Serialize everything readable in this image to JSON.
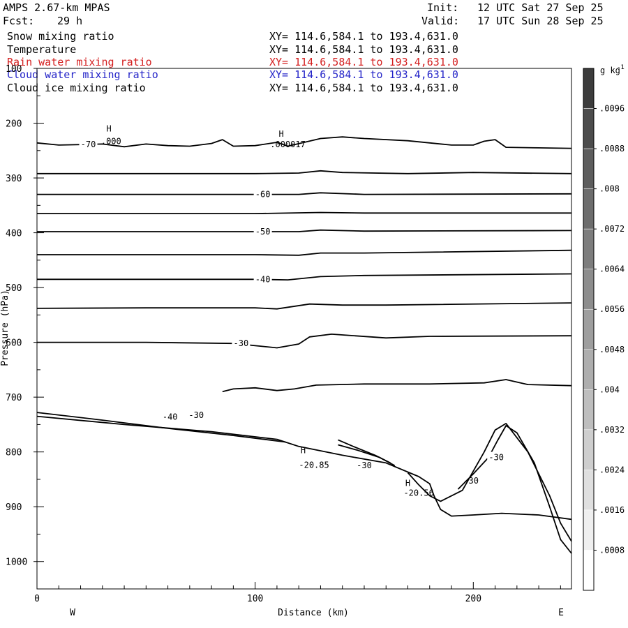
{
  "header": {
    "model": "AMPS 2.67-km MPAS",
    "init_label": "Init:",
    "init_value": "12 UTC Sat 27 Sep 25",
    "fcst_label": "Fcst:",
    "fcst_value": "29 h",
    "valid_label": "Valid:",
    "valid_value": "17 UTC Sun 28 Sep 25"
  },
  "fields": [
    {
      "name": "Snow mixing ratio",
      "xy": "XY= 114.6,584.1 to 193.4,631.0",
      "color": "#000000"
    },
    {
      "name": "Temperature",
      "xy": "XY= 114.6,584.1 to 193.4,631.0",
      "color": "#000000"
    },
    {
      "name": "Rain water mixing ratio",
      "xy": "XY= 114.6,584.1 to 193.4,631.0",
      "color": "#d42020"
    },
    {
      "name": "Cloud water mixing ratio",
      "xy": "XY= 114.6,584.1 to 193.4,631.0",
      "color": "#2424c8"
    },
    {
      "name": "Cloud ice mixing ratio",
      "xy": "XY= 114.6,584.1 to 193.4,631.0",
      "color": "#000000"
    }
  ],
  "chart_data": {
    "type": "line",
    "title": "",
    "xlabel": "Distance (km)",
    "ylabel": "Pressure (hPa)",
    "xlim": [
      0,
      245
    ],
    "ylim": [
      1050,
      100
    ],
    "x_ticks": [
      0,
      100,
      200
    ],
    "y_ticks": [
      100,
      200,
      300,
      400,
      500,
      600,
      700,
      800,
      900,
      1000
    ],
    "x_end_labels": {
      "left": "W",
      "right": "E"
    },
    "colorbar": {
      "unit": "g kg",
      "unit_exp": "-1",
      "levels": [
        ".0096",
        ".0088",
        ".008",
        ".0072",
        ".0064",
        ".0056",
        ".0048",
        ".004",
        ".0032",
        ".0024",
        ".0016",
        ".0008"
      ]
    },
    "series": [
      {
        "label": "-70",
        "points": [
          [
            0,
            236
          ],
          [
            10,
            240
          ],
          [
            20,
            239
          ],
          [
            30,
            238
          ],
          [
            40,
            243
          ],
          [
            50,
            238
          ],
          [
            60,
            241
          ],
          [
            70,
            242
          ],
          [
            80,
            237
          ],
          [
            85,
            230
          ],
          [
            90,
            242
          ],
          [
            100,
            241
          ],
          [
            110,
            235
          ],
          [
            115,
            242
          ],
          [
            130,
            228
          ],
          [
            140,
            225
          ],
          [
            150,
            228
          ],
          [
            170,
            232
          ],
          [
            190,
            240
          ],
          [
            200,
            240
          ],
          [
            205,
            233
          ],
          [
            210,
            230
          ],
          [
            215,
            244
          ],
          [
            230,
            245
          ],
          [
            245,
            246
          ]
        ]
      },
      {
        "label": "",
        "points": [
          [
            0,
            292
          ],
          [
            50,
            292
          ],
          [
            100,
            292
          ],
          [
            120,
            291
          ],
          [
            130,
            287
          ],
          [
            140,
            290
          ],
          [
            170,
            292
          ],
          [
            200,
            290
          ],
          [
            245,
            292
          ]
        ]
      },
      {
        "label": "-60",
        "points": [
          [
            0,
            330
          ],
          [
            50,
            330
          ],
          [
            100,
            330
          ],
          [
            120,
            330
          ],
          [
            130,
            327
          ],
          [
            150,
            330
          ],
          [
            245,
            329
          ]
        ]
      },
      {
        "label": "",
        "points": [
          [
            0,
            365
          ],
          [
            50,
            365
          ],
          [
            100,
            365
          ],
          [
            130,
            363
          ],
          [
            150,
            364
          ],
          [
            245,
            364
          ]
        ]
      },
      {
        "label": "-50",
        "points": [
          [
            0,
            398
          ],
          [
            50,
            398
          ],
          [
            100,
            398
          ],
          [
            120,
            398
          ],
          [
            130,
            395
          ],
          [
            150,
            397
          ],
          [
            245,
            396
          ]
        ]
      },
      {
        "label": "",
        "points": [
          [
            0,
            440
          ],
          [
            50,
            440
          ],
          [
            100,
            440
          ],
          [
            120,
            441
          ],
          [
            130,
            437
          ],
          [
            150,
            437
          ],
          [
            245,
            432
          ]
        ]
      },
      {
        "label": "-40",
        "points": [
          [
            0,
            485
          ],
          [
            50,
            485
          ],
          [
            100,
            485
          ],
          [
            115,
            486
          ],
          [
            130,
            480
          ],
          [
            150,
            478
          ],
          [
            245,
            475
          ]
        ]
      },
      {
        "label": "",
        "points": [
          [
            0,
            538
          ],
          [
            50,
            537
          ],
          [
            100,
            537
          ],
          [
            110,
            539
          ],
          [
            125,
            530
          ],
          [
            140,
            532
          ],
          [
            160,
            532
          ],
          [
            245,
            528
          ]
        ]
      },
      {
        "label": "-30",
        "points": [
          [
            0,
            600
          ],
          [
            50,
            600
          ],
          [
            90,
            602
          ],
          [
            110,
            610
          ],
          [
            120,
            603
          ],
          [
            125,
            590
          ],
          [
            135,
            585
          ],
          [
            160,
            592
          ],
          [
            180,
            589
          ],
          [
            245,
            588
          ]
        ]
      },
      {
        "label": "",
        "points": [
          [
            85,
            690
          ],
          [
            90,
            685
          ],
          [
            100,
            683
          ],
          [
            110,
            688
          ],
          [
            118,
            685
          ],
          [
            128,
            678
          ],
          [
            150,
            676
          ],
          [
            180,
            676
          ],
          [
            205,
            674
          ],
          [
            215,
            668
          ],
          [
            225,
            677
          ],
          [
            245,
            679
          ]
        ]
      },
      {
        "label": "",
        "points": [
          [
            0,
            728
          ],
          [
            30,
            742
          ],
          [
            60,
            757
          ],
          [
            90,
            770
          ],
          [
            114,
            782
          ]
        ]
      },
      {
        "label": "",
        "points": [
          [
            0,
            735
          ],
          [
            40,
            750
          ],
          [
            80,
            763
          ],
          [
            110,
            777
          ],
          [
            120,
            790
          ],
          [
            140,
            806
          ],
          [
            160,
            820
          ],
          [
            175,
            845
          ],
          [
            180,
            858
          ],
          [
            182,
            880
          ],
          [
            185,
            905
          ],
          [
            190,
            917
          ],
          [
            200,
            915
          ],
          [
            213,
            912
          ],
          [
            230,
            915
          ],
          [
            245,
            923
          ]
        ]
      },
      {
        "label": "",
        "points": [
          [
            138,
            778
          ],
          [
            145,
            790
          ],
          [
            155,
            806
          ],
          [
            162,
            820
          ]
        ]
      },
      {
        "label": "",
        "points": [
          [
            138,
            787
          ],
          [
            147,
            797
          ],
          [
            157,
            810
          ],
          [
            164,
            825
          ]
        ]
      },
      {
        "label": "",
        "points": [
          [
            170,
            838
          ],
          [
            175,
            860
          ],
          [
            180,
            880
          ],
          [
            185,
            890
          ],
          [
            195,
            870
          ],
          [
            205,
            800
          ],
          [
            210,
            760
          ],
          [
            215,
            748
          ],
          [
            225,
            800
          ],
          [
            235,
            880
          ],
          [
            240,
            930
          ],
          [
            245,
            963
          ]
        ]
      },
      {
        "label": "-30",
        "points": [
          [
            193,
            868
          ],
          [
            200,
            840
          ],
          [
            207,
            810
          ],
          [
            211,
            780
          ],
          [
            215,
            752
          ],
          [
            220,
            765
          ],
          [
            228,
            820
          ],
          [
            235,
            900
          ],
          [
            240,
            960
          ],
          [
            245,
            985
          ]
        ]
      }
    ],
    "annotations": [
      {
        "text": "H",
        "x": 33,
        "y": 215
      },
      {
        "text": ".000",
        "x": 34,
        "y": 238
      },
      {
        "text": "H",
        "x": 112,
        "y": 225
      },
      {
        "text": ".000017",
        "x": 115,
        "y": 244
      },
      {
        "text": "H",
        "x": 122,
        "y": 802
      },
      {
        "text": "-20.85",
        "x": 127,
        "y": 829
      },
      {
        "text": "-30",
        "x": 150,
        "y": 830
      },
      {
        "text": "-40",
        "x": 61,
        "y": 741
      },
      {
        "text": "-30",
        "x": 73,
        "y": 738
      },
      {
        "text": "H",
        "x": 170,
        "y": 862
      },
      {
        "text": "-20.56",
        "x": 175,
        "y": 880
      },
      {
        "text": "-30",
        "x": 199,
        "y": 858
      }
    ]
  }
}
